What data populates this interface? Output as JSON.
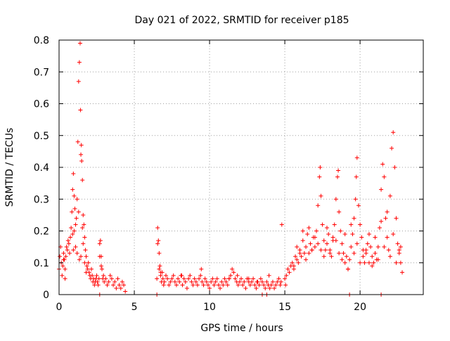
{
  "chart_data": {
    "type": "scatter",
    "title": "Day 021 of 2022, SRMTID for receiver p185",
    "xlabel": "GPS time / hours",
    "ylabel": "SRMTID / TECUs",
    "xlim": [
      0,
      24.2
    ],
    "ylim": [
      0,
      0.8
    ],
    "xticks": [
      0,
      5,
      10,
      15,
      20
    ],
    "xtick_labels": [
      "0",
      "5",
      "10",
      "15",
      "20"
    ],
    "yticks": [
      0,
      0.1,
      0.2,
      0.3,
      0.4,
      0.5,
      0.6,
      0.7,
      0.8
    ],
    "ytick_labels": [
      "0",
      "0.1",
      "0.2",
      "0.3",
      "0.4",
      "0.5",
      "0.6",
      "0.7",
      "0.8"
    ],
    "grid": true,
    "marker": "+",
    "color": "#ff0000",
    "series": [
      {
        "name": "SRMTID",
        "x": [
          0.0,
          0.05,
          0.1,
          0.15,
          0.2,
          0.25,
          0.3,
          0.35,
          0.4,
          0.45,
          0.5,
          0.55,
          0.6,
          0.65,
          0.7,
          0.75,
          0.8,
          0.85,
          0.9,
          0.95,
          1.0,
          1.05,
          1.1,
          1.15,
          1.2,
          1.25,
          1.3,
          1.35,
          1.4,
          1.42,
          1.45,
          1.48,
          1.5,
          1.55,
          1.6,
          1.65,
          1.7,
          1.75,
          1.8,
          1.85,
          1.9,
          1.95,
          2.0,
          2.05,
          2.1,
          2.15,
          2.2,
          2.25,
          2.3,
          2.35,
          2.4,
          2.45,
          2.5,
          2.55,
          2.6,
          2.65,
          2.7,
          2.75,
          2.8,
          2.85,
          2.9,
          2.95,
          3.0,
          3.1,
          3.2,
          3.3,
          3.4,
          3.5,
          3.6,
          3.7,
          3.8,
          3.9,
          4.0,
          4.1,
          4.2,
          4.3,
          4.4,
          2.7,
          2.8,
          1.0,
          1.1,
          1.2,
          1.3,
          1.35,
          1.45,
          1.55,
          1.6,
          1.7,
          1.8,
          0.9,
          0.95,
          0.3,
          0.4,
          6.5,
          6.55,
          6.6,
          6.65,
          6.7,
          6.75,
          6.8,
          6.85,
          6.9,
          6.95,
          7.0,
          7.1,
          7.2,
          7.3,
          7.4,
          7.5,
          7.6,
          7.7,
          7.8,
          7.9,
          8.0,
          8.1,
          8.2,
          8.3,
          8.4,
          8.5,
          8.6,
          8.7,
          8.8,
          8.9,
          9.0,
          9.1,
          9.2,
          9.3,
          9.4,
          9.5,
          9.6,
          9.7,
          9.8,
          9.9,
          10.0,
          10.1,
          10.2,
          10.3,
          10.4,
          10.5,
          10.6,
          10.7,
          10.8,
          10.9,
          11.0,
          11.1,
          11.2,
          11.3,
          11.4,
          11.5,
          11.6,
          11.7,
          11.8,
          11.9,
          12.0,
          12.1,
          12.2,
          12.3,
          12.4,
          12.5,
          12.6,
          12.7,
          12.8,
          12.9,
          13.0,
          13.1,
          13.2,
          13.3,
          13.4,
          13.5,
          13.6,
          13.7,
          13.8,
          13.9,
          14.0,
          14.1,
          14.2,
          14.3,
          14.4,
          14.5,
          14.6,
          14.7,
          14.8,
          6.55,
          6.65,
          6.75,
          8.15,
          9.45,
          11.3,
          11.85,
          12.6,
          13.15,
          13.95,
          14.75,
          15.0,
          15.05,
          15.1,
          15.2,
          15.3,
          15.4,
          15.5,
          15.6,
          15.7,
          15.8,
          15.9,
          16.0,
          16.1,
          16.2,
          16.3,
          16.4,
          16.5,
          16.6,
          16.7,
          16.8,
          16.9,
          17.0,
          17.1,
          17.2,
          17.3,
          17.35,
          17.4,
          17.5,
          17.6,
          17.7,
          17.8,
          17.9,
          18.0,
          18.1,
          18.2,
          18.3,
          18.4,
          18.5,
          18.55,
          18.6,
          18.7,
          18.8,
          18.9,
          19.0,
          19.1,
          19.2,
          19.3,
          19.4,
          19.5,
          19.6,
          19.7,
          19.75,
          19.8,
          19.9,
          20.0,
          20.1,
          20.2,
          20.3,
          20.4,
          20.5,
          20.6,
          20.7,
          20.8,
          20.9,
          21.0,
          21.1,
          21.2,
          21.3,
          21.4,
          21.5,
          21.6,
          21.7,
          21.8,
          21.9,
          22.0,
          22.1,
          22.2,
          22.3,
          22.4,
          22.5,
          22.6,
          22.7,
          22.8,
          15.6,
          16.0,
          16.4,
          16.8,
          17.2,
          17.6,
          18.0,
          18.4,
          18.8,
          19.2,
          19.6,
          20.0,
          20.4,
          20.8,
          21.2,
          21.6,
          22.0,
          22.4,
          22.7,
          15.8,
          16.2,
          16.6,
          17.0,
          17.4,
          17.8,
          18.2,
          18.6,
          19.0,
          19.4,
          19.8,
          20.2,
          20.6,
          21.0,
          21.4,
          21.8,
          22.2,
          22.6,
          2.7,
          6.5,
          13.5,
          13.8,
          19.3,
          21.4
        ],
        "y": [
          0.08,
          0.12,
          0.15,
          0.1,
          0.06,
          0.09,
          0.13,
          0.11,
          0.08,
          0.12,
          0.15,
          0.14,
          0.17,
          0.16,
          0.13,
          0.18,
          0.21,
          0.26,
          0.33,
          0.38,
          0.31,
          0.27,
          0.22,
          0.24,
          0.3,
          0.48,
          0.67,
          0.73,
          0.79,
          0.58,
          0.44,
          0.47,
          0.42,
          0.36,
          0.25,
          0.22,
          0.18,
          0.14,
          0.12,
          0.09,
          0.08,
          0.1,
          0.07,
          0.06,
          0.05,
          0.08,
          0.06,
          0.04,
          0.05,
          0.03,
          0.04,
          0.05,
          0.06,
          0.04,
          0.03,
          0.05,
          0.16,
          0.17,
          0.12,
          0.08,
          0.05,
          0.06,
          0.04,
          0.05,
          0.03,
          0.04,
          0.06,
          0.05,
          0.03,
          0.04,
          0.02,
          0.05,
          0.03,
          0.02,
          0.04,
          0.03,
          0.01,
          0.12,
          0.09,
          0.2,
          0.15,
          0.13,
          0.26,
          0.11,
          0.12,
          0.21,
          0.16,
          0.1,
          0.07,
          0.19,
          0.14,
          0.11,
          0.05,
          0.05,
          0.21,
          0.17,
          0.13,
          0.09,
          0.06,
          0.04,
          0.07,
          0.05,
          0.03,
          0.04,
          0.06,
          0.05,
          0.03,
          0.04,
          0.05,
          0.06,
          0.04,
          0.03,
          0.05,
          0.04,
          0.06,
          0.03,
          0.05,
          0.04,
          0.02,
          0.05,
          0.06,
          0.04,
          0.03,
          0.05,
          0.04,
          0.03,
          0.05,
          0.06,
          0.04,
          0.03,
          0.05,
          0.04,
          0.03,
          0.02,
          0.04,
          0.05,
          0.03,
          0.04,
          0.05,
          0.03,
          0.02,
          0.04,
          0.03,
          0.05,
          0.04,
          0.03,
          0.05,
          0.06,
          0.08,
          0.07,
          0.05,
          0.04,
          0.03,
          0.04,
          0.05,
          0.03,
          0.04,
          0.02,
          0.05,
          0.04,
          0.03,
          0.04,
          0.05,
          0.03,
          0.02,
          0.04,
          0.03,
          0.05,
          0.04,
          0.03,
          0.02,
          0.04,
          0.03,
          0.02,
          0.03,
          0.04,
          0.02,
          0.03,
          0.04,
          0.05,
          0.03,
          0.22,
          0.16,
          0.08,
          0.07,
          0.06,
          0.08,
          0.05,
          0.06,
          0.05,
          0.04,
          0.06,
          0.04,
          0.05,
          0.03,
          0.06,
          0.08,
          0.07,
          0.09,
          0.1,
          0.08,
          0.12,
          0.11,
          0.1,
          0.14,
          0.12,
          0.17,
          0.13,
          0.15,
          0.19,
          0.21,
          0.16,
          0.14,
          0.18,
          0.15,
          0.2,
          0.28,
          0.37,
          0.4,
          0.31,
          0.22,
          0.17,
          0.14,
          0.16,
          0.19,
          0.13,
          0.12,
          0.18,
          0.22,
          0.3,
          0.37,
          0.39,
          0.26,
          0.2,
          0.16,
          0.13,
          0.1,
          0.12,
          0.08,
          0.11,
          0.15,
          0.19,
          0.24,
          0.3,
          0.37,
          0.43,
          0.28,
          0.22,
          0.18,
          0.14,
          0.1,
          0.13,
          0.16,
          0.19,
          0.15,
          0.12,
          0.1,
          0.13,
          0.11,
          0.15,
          0.21,
          0.33,
          0.41,
          0.37,
          0.24,
          0.18,
          0.14,
          0.31,
          0.46,
          0.51,
          0.4,
          0.24,
          0.16,
          0.13,
          0.15,
          0.07,
          0.09,
          0.13,
          0.11,
          0.14,
          0.16,
          0.12,
          0.14,
          0.17,
          0.11,
          0.08,
          0.13,
          0.1,
          0.14,
          0.09,
          0.11,
          0.15,
          0.12,
          0.1,
          0.1,
          0.15,
          0.2,
          0.13,
          0.18,
          0.14,
          0.21,
          0.17,
          0.13,
          0.19,
          0.22,
          0.16,
          0.12,
          0.1,
          0.18,
          0.23,
          0.26,
          0.19,
          0.14,
          0.0,
          0.0,
          0.0,
          0.0,
          0.0,
          0.0
        ]
      }
    ]
  }
}
